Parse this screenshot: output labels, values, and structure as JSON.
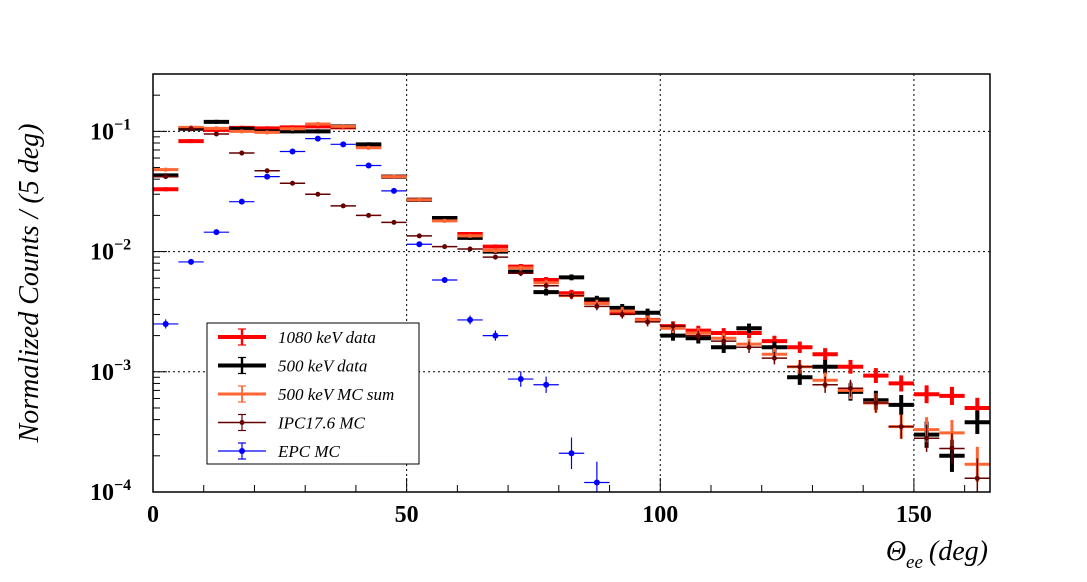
{
  "chart_data": {
    "type": "scatter",
    "title": "",
    "xlabel_main": "Θ",
    "xlabel_sub": "ee",
    "xlabel_unit": "(deg)",
    "ylabel": "Normalized Counts / (5 deg)",
    "xlim": [
      0,
      165
    ],
    "ylim": [
      0.0001,
      0.3
    ],
    "yscale": "log",
    "grid": true,
    "legend_position": "bottom-left",
    "x_ticks": [
      "0",
      "50",
      "100",
      "150"
    ],
    "y_ticks": [
      {
        "base": "10",
        "exp": "−1"
      },
      {
        "base": "10",
        "exp": "−2"
      },
      {
        "base": "10",
        "exp": "−3"
      },
      {
        "base": "10",
        "exp": "−4"
      }
    ],
    "bin_width": 5,
    "series": [
      {
        "name": "1080 keV data",
        "color": "#ff0000",
        "x": [
          2.5,
          7.5,
          12.5,
          17.5,
          22.5,
          27.5,
          32.5,
          37.5,
          42.5,
          47.5,
          52.5,
          57.5,
          62.5,
          67.5,
          72.5,
          77.5,
          82.5,
          87.5,
          92.5,
          97.5,
          102.5,
          107.5,
          112.5,
          117.5,
          122.5,
          127.5,
          132.5,
          137.5,
          142.5,
          147.5,
          152.5,
          157.5,
          162.5
        ],
        "y": [
          0.033,
          0.083,
          0.103,
          0.107,
          0.106,
          0.108,
          0.11,
          0.108,
          0.077,
          0.042,
          0.027,
          0.019,
          0.014,
          0.011,
          0.0075,
          0.0058,
          0.0045,
          0.0038,
          0.0031,
          0.0027,
          0.0024,
          0.0022,
          0.0021,
          0.0021,
          0.0018,
          0.0016,
          0.0014,
          0.0011,
          0.00093,
          0.0008,
          0.00065,
          0.00063,
          0.0005
        ]
      },
      {
        "name": "500 keV data",
        "color": "#000000",
        "x": [
          2.5,
          7.5,
          12.5,
          17.5,
          22.5,
          27.5,
          32.5,
          37.5,
          42.5,
          47.5,
          52.5,
          57.5,
          62.5,
          67.5,
          72.5,
          77.5,
          82.5,
          87.5,
          92.5,
          97.5,
          102.5,
          107.5,
          112.5,
          117.5,
          122.5,
          127.5,
          132.5,
          137.5,
          142.5,
          147.5,
          152.5,
          157.5,
          162.5
        ],
        "y": [
          0.043,
          0.105,
          0.12,
          0.105,
          0.1,
          0.1,
          0.1,
          0.11,
          0.078,
          0.042,
          0.027,
          0.019,
          0.013,
          0.01,
          0.0068,
          0.0046,
          0.0061,
          0.004,
          0.0034,
          0.0031,
          0.002,
          0.0019,
          0.0016,
          0.0023,
          0.0016,
          0.0009,
          0.0011,
          0.00068,
          0.00058,
          0.00053,
          0.0003,
          0.0002,
          0.00038
        ]
      },
      {
        "name": "500 keV MC sum",
        "color": "#ff6633",
        "x": [
          2.5,
          7.5,
          12.5,
          17.5,
          22.5,
          27.5,
          32.5,
          37.5,
          42.5,
          47.5,
          52.5,
          57.5,
          62.5,
          67.5,
          72.5,
          77.5,
          82.5,
          87.5,
          92.5,
          97.5,
          102.5,
          107.5,
          112.5,
          117.5,
          122.5,
          127.5,
          132.5,
          137.5,
          142.5,
          147.5,
          152.5,
          157.5,
          162.5
        ],
        "y": [
          0.048,
          0.108,
          0.106,
          0.1,
          0.098,
          0.105,
          0.115,
          0.11,
          0.073,
          0.042,
          0.027,
          0.018,
          0.0135,
          0.0102,
          0.0073,
          0.0055,
          0.0043,
          0.0037,
          0.0032,
          0.0027,
          0.0023,
          0.0021,
          0.0019,
          0.0017,
          0.0014,
          0.0011,
          0.00085,
          0.0007,
          0.00055,
          0.00035,
          0.00033,
          0.00031,
          0.00017
        ]
      },
      {
        "name": "IPC17.6 MC",
        "color": "#660000",
        "x": [
          2.5,
          7.5,
          12.5,
          17.5,
          22.5,
          27.5,
          32.5,
          37.5,
          42.5,
          47.5,
          52.5,
          57.5,
          62.5,
          67.5,
          72.5,
          77.5,
          82.5,
          87.5,
          92.5,
          97.5,
          102.5,
          107.5,
          112.5,
          117.5,
          122.5,
          127.5,
          132.5,
          137.5,
          142.5,
          147.5,
          152.5,
          157.5,
          162.5
        ],
        "y": [
          0.042,
          0.105,
          0.095,
          0.066,
          0.047,
          0.037,
          0.03,
          0.024,
          0.02,
          0.0175,
          0.0135,
          0.011,
          0.0105,
          0.009,
          0.0066,
          0.0052,
          0.0043,
          0.0035,
          0.003,
          0.0026,
          0.0024,
          0.002,
          0.0018,
          0.0016,
          0.0013,
          0.0011,
          0.00078,
          0.00073,
          0.00055,
          0.00035,
          0.00028,
          0.00023,
          0.00013
        ]
      },
      {
        "name": "EPC MC",
        "color": "#0000ff",
        "x": [
          2.5,
          7.5,
          12.5,
          17.5,
          22.5,
          27.5,
          32.5,
          37.5,
          42.5,
          47.5,
          52.5,
          57.5,
          62.5,
          67.5,
          72.5,
          77.5,
          82.5,
          87.5
        ],
        "y": [
          0.0025,
          0.0082,
          0.0145,
          0.026,
          0.042,
          0.068,
          0.087,
          0.078,
          0.052,
          0.032,
          0.0115,
          0.0058,
          0.0027,
          0.002,
          0.00087,
          0.00078,
          0.00021,
          0.00012
        ]
      }
    ]
  }
}
